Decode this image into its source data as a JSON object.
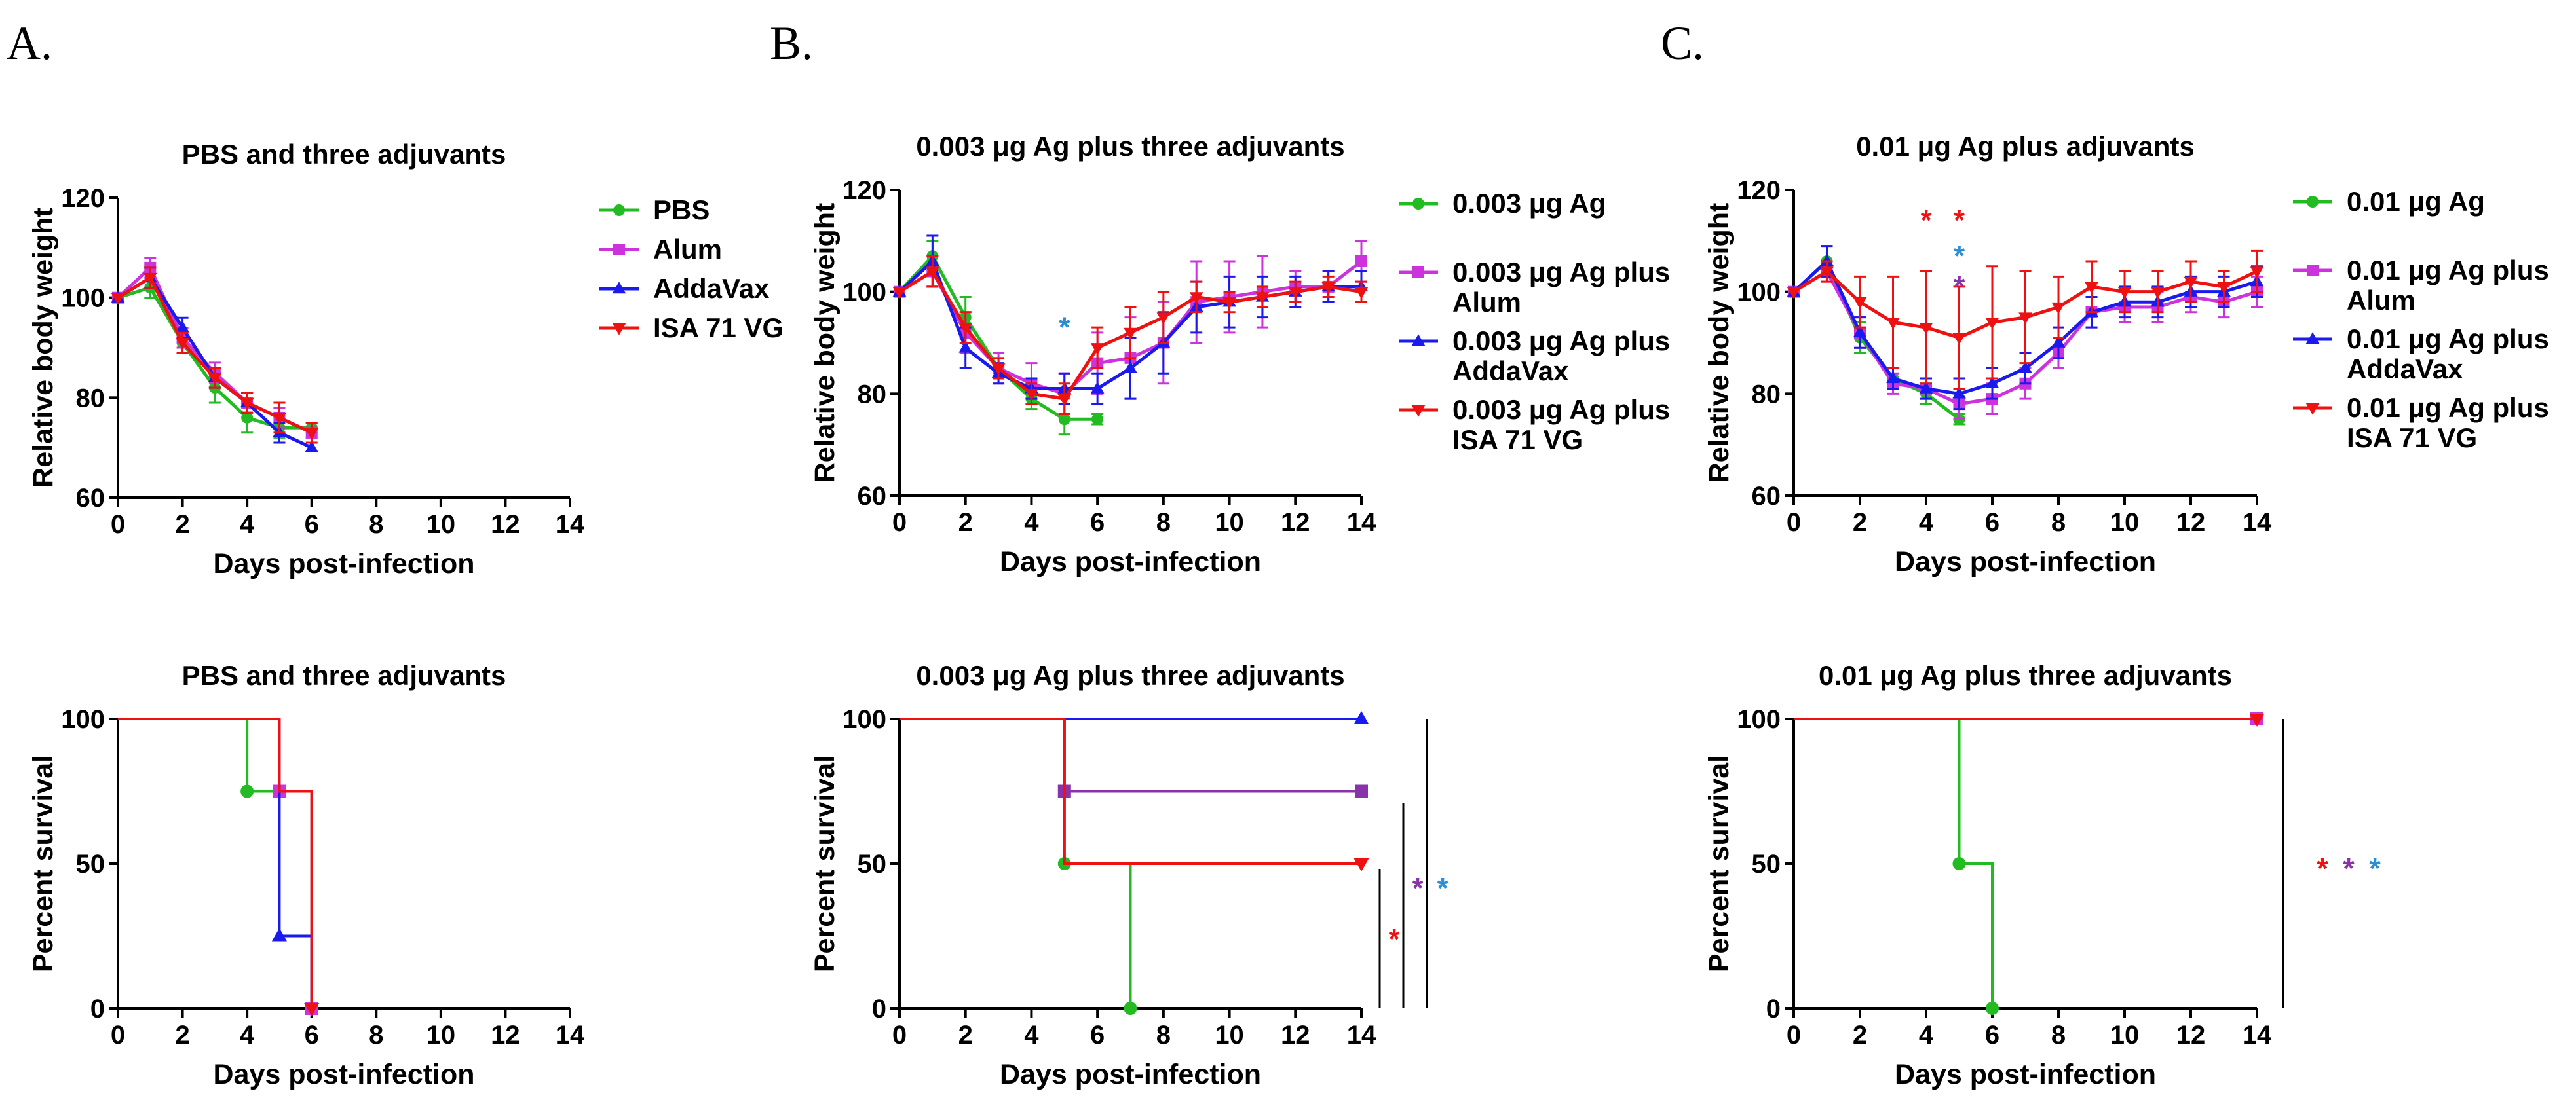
{
  "figure": {
    "panel_letters": [
      "A.",
      "B.",
      "C."
    ]
  },
  "chart_data": [
    {
      "id": "A1",
      "type": "line",
      "title": "PBS and three adjuvants",
      "xlabel": "Days post-infection",
      "ylabel": "Relative body weight",
      "xlim": [
        0,
        14
      ],
      "ylim": [
        60,
        120
      ],
      "xticks": [
        0,
        2,
        4,
        6,
        8,
        10,
        12,
        14
      ],
      "yticks": [
        60,
        80,
        100,
        120
      ],
      "legend": "right",
      "series": [
        {
          "name": "PBS",
          "color": "#22bb22",
          "marker": "circle",
          "x": [
            0,
            1,
            2,
            3,
            4,
            5,
            6
          ],
          "y": [
            100,
            102,
            91,
            82,
            76,
            74,
            74
          ],
          "err": [
            0,
            2,
            2,
            3,
            3,
            2,
            1
          ]
        },
        {
          "name": "Alum",
          "color": "#cc33dd",
          "marker": "square",
          "x": [
            0,
            1,
            2,
            3,
            4,
            5,
            6
          ],
          "y": [
            100,
            106,
            92,
            85,
            79,
            76,
            73
          ],
          "err": [
            0,
            2,
            2,
            2,
            2,
            2,
            1
          ]
        },
        {
          "name": "AddaVax",
          "color": "#1a1aee",
          "marker": "triangle-up",
          "x": [
            0,
            1,
            2,
            3,
            4,
            5,
            6
          ],
          "y": [
            100,
            104,
            94,
            84,
            79,
            73,
            70
          ],
          "err": [
            0,
            2,
            2,
            2,
            2,
            2,
            0
          ]
        },
        {
          "name": "ISA 71 VG",
          "color": "#ee1111",
          "marker": "triangle-down",
          "x": [
            0,
            1,
            2,
            3,
            4,
            5,
            6
          ],
          "y": [
            100,
            104,
            91,
            84,
            79,
            76,
            73
          ],
          "err": [
            0,
            2,
            2,
            2,
            2,
            3,
            2
          ]
        }
      ]
    },
    {
      "id": "B1",
      "type": "line",
      "title": "0.003 μg Ag plus three adjuvants",
      "xlabel": "Days post-infection",
      "ylabel": "Relative body weight",
      "xlim": [
        0,
        14
      ],
      "ylim": [
        60,
        120
      ],
      "xticks": [
        0,
        2,
        4,
        6,
        8,
        10,
        12,
        14
      ],
      "yticks": [
        60,
        80,
        100,
        120
      ],
      "legend": "right",
      "annotations": [
        {
          "text": "*",
          "x": 5,
          "y": 94,
          "color": "#2a8fd6"
        }
      ],
      "series": [
        {
          "name": "0.003 μg Ag",
          "color": "#22bb22",
          "marker": "circle",
          "x": [
            0,
            1,
            2,
            3,
            4,
            5,
            6
          ],
          "y": [
            100,
            107,
            95,
            85,
            79,
            75,
            75
          ],
          "err": [
            0,
            3,
            4,
            2,
            2,
            3,
            1
          ]
        },
        {
          "name": "0.003 μg Ag plus Alum",
          "color": "#cc33dd",
          "marker": "square",
          "x": [
            0,
            1,
            2,
            3,
            4,
            5,
            6,
            7,
            8,
            9,
            10,
            11,
            12,
            13,
            14
          ],
          "y": [
            100,
            104,
            92,
            85,
            82,
            80,
            86,
            87,
            90,
            98,
            99,
            100,
            101,
            101,
            106
          ],
          "err": [
            0,
            3,
            4,
            3,
            4,
            4,
            6,
            8,
            8,
            8,
            7,
            7,
            3,
            3,
            4
          ]
        },
        {
          "name": "0.003 μg Ag plus AddaVax",
          "color": "#1a1aee",
          "marker": "triangle-up",
          "x": [
            0,
            1,
            2,
            3,
            4,
            5,
            6,
            7,
            8,
            9,
            10,
            11,
            12,
            13,
            14
          ],
          "y": [
            100,
            106,
            89,
            84,
            81,
            81,
            81,
            85,
            90,
            97,
            98,
            99,
            100,
            101,
            101
          ],
          "err": [
            0,
            5,
            4,
            2,
            2,
            3,
            3,
            6,
            6,
            5,
            5,
            4,
            3,
            3,
            3
          ]
        },
        {
          "name": "0.003 μg Ag plus ISA 71 VG",
          "color": "#ee1111",
          "marker": "triangle-down",
          "x": [
            0,
            1,
            2,
            3,
            4,
            5,
            6,
            7,
            8,
            9,
            10,
            11,
            12,
            13,
            14
          ],
          "y": [
            100,
            104,
            93,
            85,
            80,
            79,
            89,
            92,
            95,
            99,
            98,
            99,
            100,
            101,
            100
          ],
          "err": [
            0,
            3,
            3,
            2,
            2,
            3,
            4,
            5,
            5,
            3,
            2,
            2,
            2,
            2,
            2
          ]
        }
      ]
    },
    {
      "id": "C1",
      "type": "line",
      "title": "0.01 μg Ag plus adjuvants",
      "xlabel": "Days post-infection",
      "ylabel": "Relative body weight",
      "xlim": [
        0,
        14
      ],
      "ylim": [
        60,
        120
      ],
      "xticks": [
        0,
        2,
        4,
        6,
        8,
        10,
        12,
        14
      ],
      "yticks": [
        60,
        80,
        100,
        120
      ],
      "legend": "right",
      "annotations": [
        {
          "text": "*",
          "x": 4,
          "y": 115,
          "color": "#ee1111"
        },
        {
          "text": "*",
          "x": 5,
          "y": 115,
          "color": "#ee1111"
        },
        {
          "text": "*",
          "x": 5,
          "y": 108,
          "color": "#2a8fd6"
        },
        {
          "text": "*",
          "x": 5,
          "y": 102,
          "color": "#8833aa"
        }
      ],
      "series": [
        {
          "name": "0.01 μg Ag",
          "color": "#22bb22",
          "marker": "circle",
          "x": [
            0,
            1,
            2,
            3,
            4,
            5
          ],
          "y": [
            100,
            106,
            91,
            83,
            80,
            75
          ],
          "err": [
            0,
            3,
            3,
            2,
            2,
            1
          ]
        },
        {
          "name": "0.01 μg Ag plus Alum",
          "color": "#cc33dd",
          "marker": "square",
          "x": [
            0,
            1,
            2,
            3,
            4,
            5,
            6,
            7,
            8,
            9,
            10,
            11,
            12,
            13,
            14
          ],
          "y": [
            100,
            104,
            92,
            82,
            81,
            78,
            79,
            82,
            88,
            96,
            97,
            97,
            99,
            98,
            100
          ],
          "err": [
            0,
            2,
            3,
            2,
            2,
            3,
            3,
            3,
            3,
            3,
            3,
            3,
            3,
            3,
            3
          ]
        },
        {
          "name": "0.01 μg Ag plus AddaVax",
          "color": "#1a1aee",
          "marker": "triangle-up",
          "x": [
            0,
            1,
            2,
            3,
            4,
            5,
            6,
            7,
            8,
            9,
            10,
            11,
            12,
            13,
            14
          ],
          "y": [
            100,
            106,
            92,
            83,
            81,
            80,
            82,
            85,
            90,
            96,
            98,
            98,
            100,
            100,
            102
          ],
          "err": [
            0,
            3,
            3,
            2,
            2,
            3,
            3,
            3,
            3,
            3,
            3,
            3,
            3,
            3,
            3
          ]
        },
        {
          "name": "0.01 μg Ag plus ISA 71 VG",
          "color": "#ee1111",
          "marker": "triangle-down",
          "x": [
            0,
            1,
            2,
            3,
            4,
            5,
            6,
            7,
            8,
            9,
            10,
            11,
            12,
            13,
            14
          ],
          "y": [
            100,
            104,
            98,
            94,
            93,
            91,
            94,
            95,
            97,
            101,
            100,
            100,
            102,
            101,
            104
          ],
          "err": [
            0,
            2,
            5,
            9,
            11,
            10,
            11,
            9,
            6,
            5,
            4,
            4,
            4,
            3,
            4
          ]
        }
      ]
    },
    {
      "id": "A2",
      "type": "step",
      "title": "PBS and three adjuvants",
      "xlabel": "Days post-infection",
      "ylabel": "Percent survival",
      "xlim": [
        0,
        14
      ],
      "ylim": [
        0,
        100
      ],
      "xticks": [
        0,
        2,
        4,
        6,
        8,
        10,
        12,
        14
      ],
      "yticks": [
        0,
        50,
        100
      ],
      "series": [
        {
          "name": "PBS",
          "color": "#22bb22",
          "marker": "circle",
          "steps": [
            [
              0,
              100
            ],
            [
              4,
              75
            ],
            [
              6,
              0
            ]
          ],
          "marks": [
            [
              4,
              75
            ]
          ]
        },
        {
          "name": "Alum",
          "color": "#cc33dd",
          "marker": "square",
          "steps": [
            [
              0,
              100
            ],
            [
              5,
              75
            ],
            [
              6,
              0
            ]
          ],
          "marks": [
            [
              5,
              75
            ],
            [
              6,
              0
            ]
          ]
        },
        {
          "name": "AddaVax",
          "color": "#1a1aee",
          "marker": "triangle-up",
          "steps": [
            [
              0,
              100
            ],
            [
              5,
              25
            ],
            [
              6,
              0
            ]
          ],
          "marks": [
            [
              5,
              25
            ]
          ]
        },
        {
          "name": "ISA 71 VG",
          "color": "#ee1111",
          "marker": "triangle-down",
          "steps": [
            [
              0,
              100
            ],
            [
              5,
              75
            ],
            [
              6,
              0
            ]
          ],
          "marks": [
            [
              6,
              0
            ]
          ]
        }
      ]
    },
    {
      "id": "B2",
      "type": "step",
      "title": "0.003 μg Ag plus three adjuvants",
      "xlabel": "Days post-infection",
      "ylabel": "Percent survival",
      "xlim": [
        0,
        14
      ],
      "ylim": [
        0,
        100
      ],
      "xticks": [
        0,
        2,
        4,
        6,
        8,
        10,
        12,
        14
      ],
      "yticks": [
        0,
        50,
        100
      ],
      "significance": [
        {
          "text": "*",
          "color": "#ee1111",
          "y_from": 0,
          "y_to": 50
        },
        {
          "text": "*",
          "color": "#8833aa",
          "y_from": 0,
          "y_to": 71
        },
        {
          "text": "*",
          "color": "#2a8fd6",
          "y_from": 0,
          "y_to": 100
        }
      ],
      "series": [
        {
          "name": "0.003 μg Ag",
          "color": "#22bb22",
          "marker": "circle",
          "steps": [
            [
              0,
              100
            ],
            [
              5,
              50
            ],
            [
              7,
              0
            ]
          ],
          "marks": [
            [
              5,
              50
            ],
            [
              7,
              0
            ]
          ]
        },
        {
          "name": "0.003 μg Ag plus Alum",
          "color": "#8833aa",
          "marker": "square",
          "steps": [
            [
              0,
              100
            ],
            [
              5,
              75
            ],
            [
              14,
              75
            ]
          ],
          "marks": [
            [
              5,
              75
            ],
            [
              14,
              75
            ]
          ]
        },
        {
          "name": "0.003 μg Ag plus AddaVax",
          "color": "#1a1aee",
          "marker": "triangle-up",
          "steps": [
            [
              0,
              100
            ],
            [
              14,
              100
            ]
          ],
          "marks": [
            [
              14,
              100
            ]
          ]
        },
        {
          "name": "0.003 μg Ag plus ISA 71 VG",
          "color": "#ee1111",
          "marker": "triangle-down",
          "steps": [
            [
              0,
              100
            ],
            [
              5,
              50
            ],
            [
              14,
              50
            ]
          ],
          "marks": [
            [
              14,
              50
            ]
          ]
        }
      ]
    },
    {
      "id": "C2",
      "type": "step",
      "title": "0.01 μg Ag plus three adjuvants",
      "xlabel": "Days post-infection",
      "ylabel": "Percent survival",
      "xlim": [
        0,
        14
      ],
      "ylim": [
        0,
        100
      ],
      "xticks": [
        0,
        2,
        4,
        6,
        8,
        10,
        12,
        14
      ],
      "yticks": [
        0,
        50,
        100
      ],
      "significance": [
        {
          "text": "*",
          "color": "#ee1111",
          "y_from": 0,
          "y_to": 100
        },
        {
          "text": "*",
          "color": "#8833aa",
          "y_from": 0,
          "y_to": 100
        },
        {
          "text": "*",
          "color": "#2a8fd6",
          "y_from": 0,
          "y_to": 100
        }
      ],
      "series": [
        {
          "name": "0.01 μg Ag",
          "color": "#22bb22",
          "marker": "circle",
          "steps": [
            [
              0,
              100
            ],
            [
              5,
              50
            ],
            [
              6,
              0
            ]
          ],
          "marks": [
            [
              5,
              50
            ],
            [
              6,
              0
            ]
          ]
        },
        {
          "name": "0.01 μg Ag plus Alum",
          "color": "#cc33dd",
          "marker": "square",
          "steps": [
            [
              0,
              100
            ],
            [
              14,
              100
            ]
          ],
          "marks": [
            [
              14,
              100
            ]
          ]
        },
        {
          "name": "0.01 μg Ag plus AddaVax",
          "color": "#1a1aee",
          "marker": "triangle-up",
          "steps": [
            [
              0,
              100
            ],
            [
              14,
              100
            ]
          ],
          "marks": []
        },
        {
          "name": "0.01 μg Ag plus ISA 71 VG",
          "color": "#ee1111",
          "marker": "triangle-down",
          "steps": [
            [
              0,
              100
            ],
            [
              14,
              100
            ]
          ],
          "marks": [
            [
              14,
              100
            ]
          ]
        }
      ]
    }
  ],
  "legends": {
    "A1": [
      [
        "PBS"
      ],
      [
        "Alum"
      ],
      [
        "AddaVax"
      ],
      [
        "ISA 71 VG"
      ]
    ],
    "B1": [
      [
        "0.003 μg Ag"
      ],
      [
        "0.003 μg Ag plus",
        " Alum"
      ],
      [
        "0.003 μg Ag plus",
        "AddaVax"
      ],
      [
        "0.003 μg Ag plus",
        "ISA 71 VG"
      ]
    ],
    "C1": [
      [
        "0.01 μg Ag"
      ],
      [
        "0.01 μg Ag plus",
        "Alum"
      ],
      [
        "0.01 μg Ag plus",
        "AddaVax"
      ],
      [
        "0.01 μg Ag plus",
        "ISA 71 VG"
      ]
    ]
  }
}
